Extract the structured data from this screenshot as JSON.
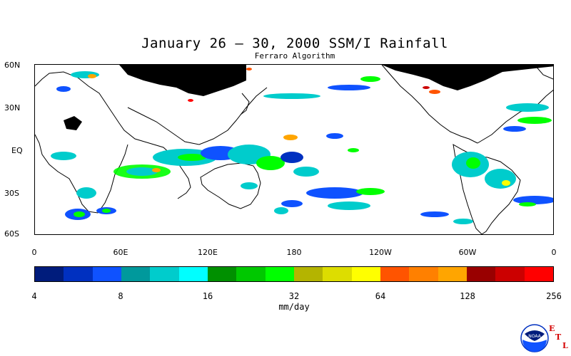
{
  "title": "January 26 – 30, 2000 SSM/I Rainfall",
  "subtitle": "Ferraro Algorithm",
  "lat_labels": [
    "60N",
    "30N",
    "EQ",
    "30S",
    "60S"
  ],
  "lon_labels": [
    "0",
    "60E",
    "120E",
    "180",
    "120W",
    "60W",
    "0"
  ],
  "colorbar": {
    "colors": [
      "#001c7c",
      "#0030c0",
      "#0f52ff",
      "#00999c",
      "#00cccc",
      "#00ffff",
      "#009000",
      "#00c800",
      "#00ff00",
      "#b4b400",
      "#dddd00",
      "#ffff00",
      "#ff5400",
      "#ff8000",
      "#ffa500",
      "#990000",
      "#cc0000",
      "#ff0000"
    ],
    "tick_labels": [
      "4",
      "8",
      "16",
      "32",
      "64",
      "128",
      "256"
    ],
    "units": "mm/day"
  },
  "logo": {
    "name": "NOAA",
    "letters": [
      "E",
      "T",
      "L"
    ]
  },
  "map": {
    "no_data_color": "#000000",
    "coastline_color": "#000000"
  }
}
